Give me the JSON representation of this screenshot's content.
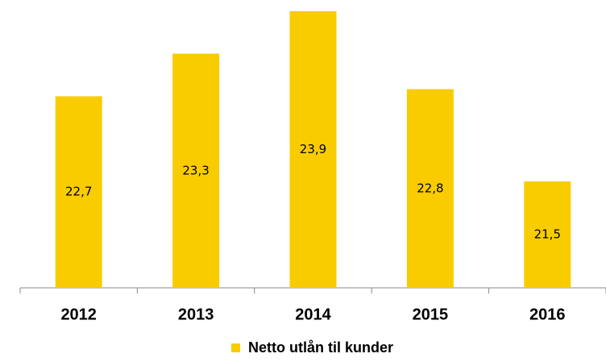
{
  "chart_data": {
    "type": "bar",
    "categories": [
      "2012",
      "2013",
      "2014",
      "2015",
      "2016"
    ],
    "series": [
      {
        "name": "Netto utlån til kunder",
        "color": "#f9cc00",
        "values": [
          22.7,
          23.3,
          23.9,
          22.8,
          21.5
        ],
        "value_labels": [
          "22,7",
          "23,3",
          "23,9",
          "22,8",
          "21,5"
        ]
      }
    ],
    "ylim": [
      20,
      24
    ]
  }
}
